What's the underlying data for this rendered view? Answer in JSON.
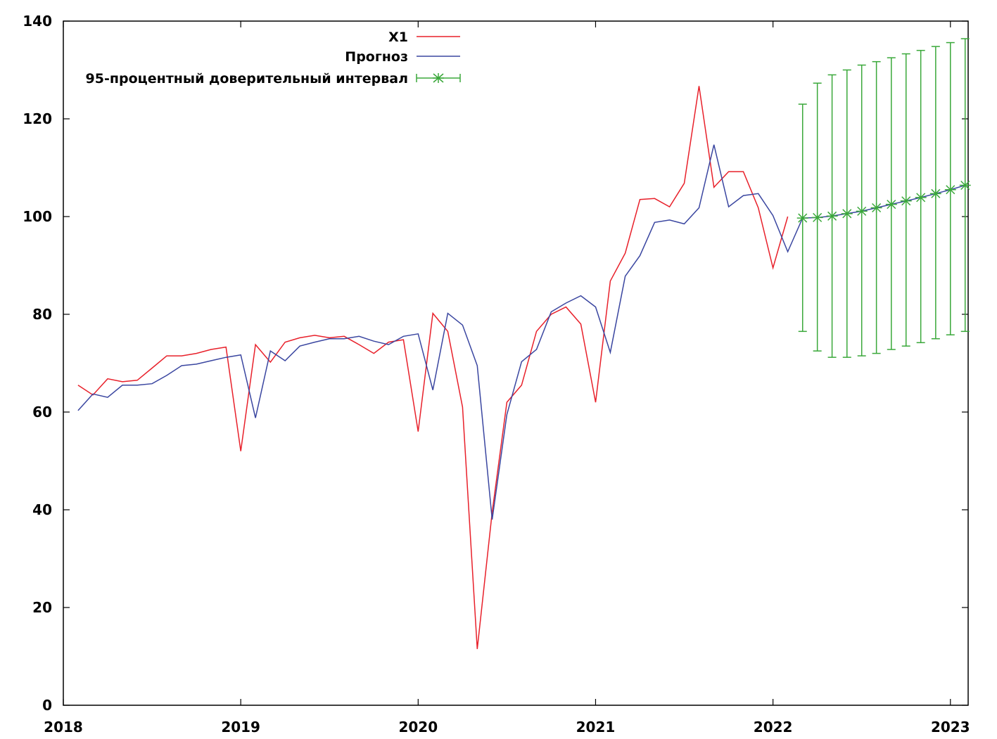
{
  "chart_data": {
    "type": "line",
    "title": "",
    "xlabel": "",
    "ylabel": "",
    "xlim": [
      2018,
      2023.1
    ],
    "ylim": [
      0,
      140
    ],
    "x_ticks": [
      2018,
      2019,
      2020,
      2021,
      2022,
      2023
    ],
    "y_ticks": [
      0,
      20,
      40,
      60,
      80,
      100,
      120,
      140
    ],
    "grid": false,
    "legend_position": "top-center",
    "colors": {
      "x1": "#e8202a",
      "forecast": "#3a46a0",
      "interval": "#3aa83a"
    },
    "series": [
      {
        "name": "X1",
        "key": "x1",
        "points": [
          [
            2018.083,
            65.5
          ],
          [
            2018.167,
            63.5
          ],
          [
            2018.25,
            66.8
          ],
          [
            2018.333,
            66.2
          ],
          [
            2018.417,
            66.5
          ],
          [
            2018.5,
            69.0
          ],
          [
            2018.583,
            71.5
          ],
          [
            2018.667,
            71.5
          ],
          [
            2018.75,
            72.0
          ],
          [
            2018.833,
            72.8
          ],
          [
            2018.917,
            73.3
          ],
          [
            2019.0,
            52.0
          ],
          [
            2019.083,
            73.8
          ],
          [
            2019.167,
            70.2
          ],
          [
            2019.25,
            74.3
          ],
          [
            2019.333,
            75.2
          ],
          [
            2019.417,
            75.7
          ],
          [
            2019.5,
            75.2
          ],
          [
            2019.583,
            75.5
          ],
          [
            2019.667,
            73.8
          ],
          [
            2019.75,
            72.0
          ],
          [
            2019.833,
            74.3
          ],
          [
            2019.917,
            74.8
          ],
          [
            2020.0,
            56.0
          ],
          [
            2020.083,
            80.2
          ],
          [
            2020.167,
            76.5
          ],
          [
            2020.25,
            61.0
          ],
          [
            2020.333,
            11.5
          ],
          [
            2020.417,
            39.5
          ],
          [
            2020.5,
            62.0
          ],
          [
            2020.583,
            65.5
          ],
          [
            2020.667,
            76.5
          ],
          [
            2020.75,
            80.0
          ],
          [
            2020.833,
            81.5
          ],
          [
            2020.917,
            78.0
          ],
          [
            2021.0,
            62.0
          ],
          [
            2021.083,
            86.8
          ],
          [
            2021.167,
            92.5
          ],
          [
            2021.25,
            103.5
          ],
          [
            2021.333,
            103.7
          ],
          [
            2021.417,
            102.0
          ],
          [
            2021.5,
            106.8
          ],
          [
            2021.583,
            126.7
          ],
          [
            2021.667,
            106.0
          ],
          [
            2021.75,
            109.2
          ],
          [
            2021.833,
            109.2
          ],
          [
            2021.917,
            101.8
          ],
          [
            2022.0,
            89.5
          ],
          [
            2022.083,
            100.0
          ]
        ]
      },
      {
        "name": "Прогноз",
        "key": "forecast",
        "points": [
          [
            2018.083,
            60.3
          ],
          [
            2018.167,
            63.7
          ],
          [
            2018.25,
            63.0
          ],
          [
            2018.333,
            65.5
          ],
          [
            2018.417,
            65.5
          ],
          [
            2018.5,
            65.8
          ],
          [
            2018.583,
            67.5
          ],
          [
            2018.667,
            69.5
          ],
          [
            2018.75,
            69.8
          ],
          [
            2018.833,
            70.5
          ],
          [
            2018.917,
            71.2
          ],
          [
            2019.0,
            71.7
          ],
          [
            2019.083,
            58.8
          ],
          [
            2019.167,
            72.5
          ],
          [
            2019.25,
            70.5
          ],
          [
            2019.333,
            73.5
          ],
          [
            2019.417,
            74.3
          ],
          [
            2019.5,
            75.0
          ],
          [
            2019.583,
            75.0
          ],
          [
            2019.667,
            75.5
          ],
          [
            2019.75,
            74.5
          ],
          [
            2019.833,
            73.8
          ],
          [
            2019.917,
            75.5
          ],
          [
            2020.0,
            76.0
          ],
          [
            2020.083,
            64.5
          ],
          [
            2020.167,
            80.2
          ],
          [
            2020.25,
            77.8
          ],
          [
            2020.333,
            69.5
          ],
          [
            2020.417,
            38.0
          ],
          [
            2020.5,
            59.5
          ],
          [
            2020.583,
            70.3
          ],
          [
            2020.667,
            72.8
          ],
          [
            2020.75,
            80.5
          ],
          [
            2020.833,
            82.3
          ],
          [
            2020.917,
            83.8
          ],
          [
            2021.0,
            81.5
          ],
          [
            2021.083,
            72.2
          ],
          [
            2021.167,
            87.8
          ],
          [
            2021.25,
            92.0
          ],
          [
            2021.333,
            98.8
          ],
          [
            2021.417,
            99.3
          ],
          [
            2021.5,
            98.5
          ],
          [
            2021.583,
            101.8
          ],
          [
            2021.667,
            114.7
          ],
          [
            2021.75,
            102.0
          ],
          [
            2021.833,
            104.3
          ],
          [
            2021.917,
            104.7
          ],
          [
            2022.0,
            100.2
          ],
          [
            2022.083,
            92.8
          ],
          [
            2022.167,
            99.7
          ],
          [
            2022.25,
            99.8
          ],
          [
            2022.333,
            100.1
          ],
          [
            2022.417,
            100.6
          ],
          [
            2022.5,
            101.1
          ],
          [
            2022.583,
            101.8
          ],
          [
            2022.667,
            102.5
          ],
          [
            2022.75,
            103.2
          ],
          [
            2022.833,
            103.9
          ],
          [
            2022.917,
            104.7
          ],
          [
            2023.0,
            105.5
          ],
          [
            2023.083,
            106.4
          ]
        ]
      },
      {
        "name": "95-процентный доверительный интервал",
        "key": "interval",
        "type": "errorbar",
        "points": [
          {
            "x": 2022.167,
            "y": 99.7,
            "low": 76.5,
            "high": 123.0
          },
          {
            "x": 2022.25,
            "y": 99.8,
            "low": 72.5,
            "high": 127.3
          },
          {
            "x": 2022.333,
            "y": 100.1,
            "low": 71.2,
            "high": 129.0
          },
          {
            "x": 2022.417,
            "y": 100.6,
            "low": 71.2,
            "high": 130.0
          },
          {
            "x": 2022.5,
            "y": 101.1,
            "low": 71.5,
            "high": 131.0
          },
          {
            "x": 2022.583,
            "y": 101.8,
            "low": 72.0,
            "high": 131.7
          },
          {
            "x": 2022.667,
            "y": 102.5,
            "low": 72.8,
            "high": 132.5
          },
          {
            "x": 2022.75,
            "y": 103.2,
            "low": 73.5,
            "high": 133.3
          },
          {
            "x": 2022.833,
            "y": 103.9,
            "low": 74.2,
            "high": 134.0
          },
          {
            "x": 2022.917,
            "y": 104.7,
            "low": 75.0,
            "high": 134.8
          },
          {
            "x": 2023.0,
            "y": 105.5,
            "low": 75.8,
            "high": 135.6
          },
          {
            "x": 2023.083,
            "y": 106.4,
            "low": 76.5,
            "high": 136.4
          }
        ]
      }
    ]
  }
}
